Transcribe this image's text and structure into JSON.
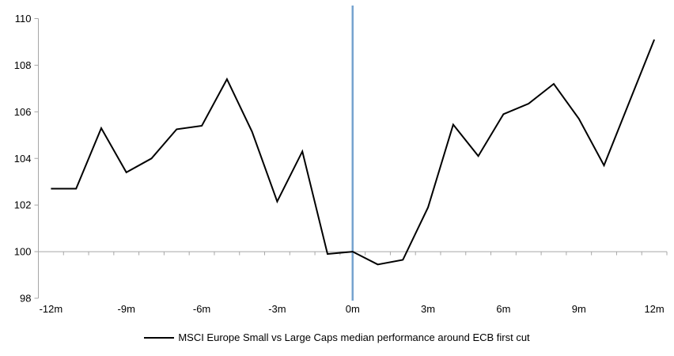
{
  "chart_data": {
    "type": "line",
    "title": "",
    "xlabel": "",
    "ylabel": "",
    "x": [
      -12,
      -11,
      -10,
      -9,
      -8,
      -7,
      -6,
      -5,
      -4,
      -3,
      -2,
      -1,
      0,
      1,
      2,
      3,
      4,
      5,
      6,
      7,
      8,
      9,
      10,
      11,
      12
    ],
    "series": [
      {
        "name": "MSCI Europe Small vs Large Caps median performance around ECB first cut",
        "values": [
          102.7,
          102.7,
          105.3,
          103.4,
          104.0,
          105.25,
          105.4,
          107.4,
          105.15,
          102.15,
          104.3,
          99.9,
          100.0,
          99.45,
          99.65,
          101.9,
          105.45,
          104.1,
          105.9,
          106.35,
          107.2,
          105.7,
          103.7,
          106.4,
          109.1
        ]
      }
    ],
    "xlim": [
      -12.5,
      12.5
    ],
    "ylim": [
      98,
      110
    ],
    "y_ticks": [
      98,
      100,
      102,
      104,
      106,
      108,
      110
    ],
    "x_tick_positions": [
      -12,
      -9,
      -6,
      -3,
      0,
      3,
      6,
      9,
      12
    ],
    "x_tick_labels": [
      "-12m",
      "-9m",
      "-6m",
      "-3m",
      "0m",
      "3m",
      "6m",
      "9m",
      "12m"
    ],
    "x_minor_tick_step": 1,
    "baseline_value": 100,
    "event_line_x": 0,
    "grid": "off",
    "legend_position": "bottom-center",
    "colors": {
      "series": "#000000",
      "event_line": "#76A3CF",
      "axis": "#A6A6A6",
      "text": "#000000",
      "background": "#FFFFFF"
    }
  }
}
